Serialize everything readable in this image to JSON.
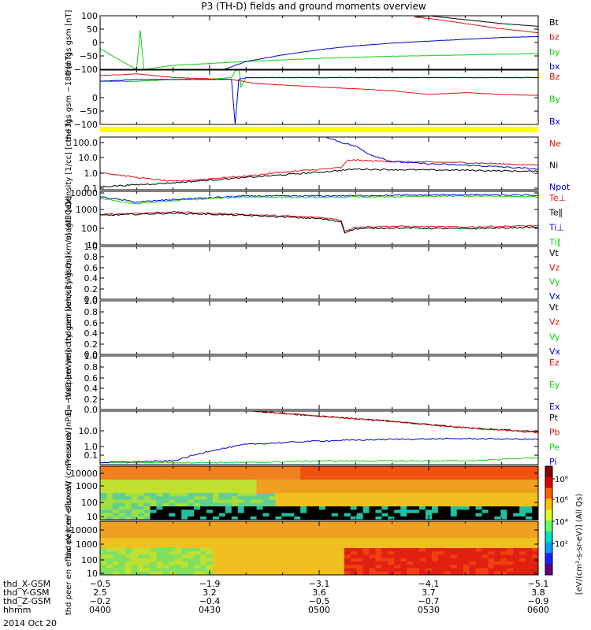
{
  "figure": {
    "title": "P3 (TH-D) fields and ground moments overview",
    "date": "2014 Oct 20"
  },
  "colors": {
    "black": "#000000",
    "red": "#e01010",
    "green": "#10d010",
    "blue": "#0000d0",
    "yellow": "#ffff00"
  },
  "chart_data": [
    {
      "type": "line",
      "id": "fgs",
      "ylabel": "thd fgs gsm [nT]",
      "yticks": [
        "100",
        "50",
        "0",
        "−50",
        "−100"
      ],
      "ylim": [
        -100,
        105
      ],
      "series": [
        {
          "name": "Bt",
          "color": "black",
          "x": [
            43,
            45,
            50,
            55,
            60
          ],
          "y": [
            100,
            105,
            90,
            75,
            65
          ]
        },
        {
          "name": "bz",
          "color": "red",
          "x": [
            43,
            45,
            50,
            55,
            60
          ],
          "y": [
            100,
            95,
            75,
            55,
            40
          ]
        },
        {
          "name": "by",
          "color": "green",
          "x": [
            0,
            3,
            5,
            5.5,
            6,
            10,
            20,
            30,
            40,
            50,
            55,
            60
          ],
          "y": [
            -20,
            -70,
            -100,
            50,
            -100,
            -85,
            -70,
            -58,
            -50,
            -45,
            -42,
            -40
          ]
        },
        {
          "name": "bx",
          "color": "blue",
          "x": [
            17,
            20,
            25,
            30,
            35,
            40,
            45,
            50,
            55,
            60
          ],
          "y": [
            -100,
            -70,
            -45,
            -25,
            -10,
            0,
            8,
            15,
            22,
            25
          ]
        }
      ]
    },
    {
      "type": "line",
      "id": "fgs_dsl",
      "ylabel": "thd fgs gsm −180 [nT]",
      "yticks": [
        "0",
        "−50",
        "−100"
      ],
      "ylim": [
        -120,
        25
      ],
      "series": [
        {
          "name": "Bz",
          "color": "red",
          "x": [
            0,
            5,
            10,
            18,
            21,
            25,
            30,
            40,
            45,
            50,
            55,
            60
          ],
          "y": [
            10,
            15,
            5,
            0,
            -10,
            -15,
            -20,
            -30,
            -40,
            -35,
            -40,
            -42
          ]
        },
        {
          "name": "By",
          "color": "green",
          "x": [
            0,
            5,
            10,
            15,
            18,
            19,
            19.3,
            20,
            30,
            40,
            50,
            60
          ],
          "y": [
            -5,
            -5,
            0,
            0,
            5,
            40,
            -20,
            5,
            5,
            5,
            5,
            5
          ]
        },
        {
          "name": "Bx",
          "color": "blue",
          "x": [
            0,
            5,
            10,
            15,
            18,
            18.5,
            19,
            20,
            30,
            40,
            50,
            60
          ],
          "y": [
            -5,
            0,
            0,
            0,
            0,
            -120,
            0,
            5,
            5,
            5,
            5,
            5
          ]
        }
      ]
    },
    {
      "type": "line",
      "id": "density",
      "ylabel": "Density [1/cc] [cm−3]",
      "yticks": [
        "100.0",
        "10.0",
        "1.0",
        "0.1"
      ],
      "ylim": [
        0.1,
        100
      ],
      "log": true,
      "series": [
        {
          "name": "Ne",
          "color": "red",
          "x": [
            0,
            5,
            10,
            20,
            25,
            33,
            34,
            40,
            50,
            60
          ],
          "y": [
            1,
            0.5,
            0.3,
            0.6,
            1,
            1.8,
            5,
            4,
            3.5,
            2.5
          ]
        },
        {
          "name": "Ni",
          "color": "black",
          "x": [
            0,
            10,
            20,
            30,
            35,
            40,
            50,
            60
          ],
          "y": [
            0.15,
            0.25,
            0.5,
            1,
            1.5,
            1.4,
            1.3,
            1.1
          ]
        },
        {
          "name": "Npot",
          "color": "blue",
          "x": [
            31,
            33,
            35,
            37,
            40,
            45,
            50,
            55,
            60
          ],
          "y": [
            100,
            50,
            30,
            10,
            4,
            3,
            2.5,
            2,
            1.5
          ]
        }
      ]
    },
    {
      "type": "line",
      "id": "temperature",
      "ylabel": "magt3 [eV]",
      "yticks": [
        "10000",
        "1000",
        "100",
        "10"
      ],
      "ylim": [
        10,
        10000
      ],
      "log": true,
      "series": [
        {
          "name": "Te⊥",
          "color": "red",
          "x": [
            0,
            10,
            20,
            30,
            33,
            33.5,
            35,
            40,
            50,
            60
          ],
          "y": [
            500,
            700,
            500,
            350,
            250,
            60,
            100,
            110,
            100,
            120
          ]
        },
        {
          "name": "Te∥",
          "color": "black",
          "x": [
            0,
            10,
            20,
            30,
            33,
            33.5,
            35,
            40,
            50,
            60
          ],
          "y": [
            450,
            600,
            450,
            300,
            200,
            50,
            80,
            90,
            80,
            100
          ]
        },
        {
          "name": "Ti⊥",
          "color": "blue",
          "x": [
            0,
            5,
            10,
            20,
            30,
            40,
            50,
            60
          ],
          "y": [
            5000,
            2500,
            3500,
            5500,
            5500,
            6000,
            6500,
            6000
          ]
        },
        {
          "name": "Ti∥",
          "color": "green",
          "x": [
            0,
            5,
            10,
            20,
            30,
            40,
            50,
            60
          ],
          "y": [
            4000,
            2000,
            3000,
            5000,
            4500,
            5000,
            5500,
            5000
          ]
        }
      ]
    },
    {
      "type": "line",
      "id": "peir_velocity",
      "ylabel": "thd peir velocity gsm [km/s] (All Qs)",
      "yticks": [
        "1.0",
        "0.8",
        "0.6",
        "0.4",
        "0.2",
        "0.0"
      ],
      "ylim": [
        0,
        1
      ],
      "series": [
        {
          "name": "Vt",
          "color": "black"
        },
        {
          "name": "Vz",
          "color": "red"
        },
        {
          "name": "Vy",
          "color": "green"
        },
        {
          "name": "Vx",
          "color": "blue"
        }
      ]
    },
    {
      "type": "line",
      "id": "peer_velocity",
      "ylabel": "thd peer velocity gsm [km/s] (All Qs)",
      "yticks": [
        "1.0",
        "0.8",
        "0.6",
        "0.4",
        "0.2",
        "0.0"
      ],
      "ylim": [
        0,
        1
      ],
      "series": [
        {
          "name": "Vt",
          "color": "black"
        },
        {
          "name": "Vz",
          "color": "red"
        },
        {
          "name": "Vy",
          "color": "green"
        },
        {
          "name": "Vx",
          "color": "blue"
        }
      ]
    },
    {
      "type": "line",
      "id": "efield",
      "ylabel": "E=−VxB [mV/m]",
      "yticks": [
        "1.0",
        "0.8",
        "0.6",
        "0.4",
        "0.2",
        "0.0"
      ],
      "ylim": [
        0,
        1
      ],
      "series": [
        {
          "name": "Ez",
          "color": "red"
        },
        {
          "name": "Ey",
          "color": "green"
        },
        {
          "name": "Ex",
          "color": "blue"
        }
      ]
    },
    {
      "type": "line",
      "id": "pressure",
      "ylabel": "Pressure [nPa]",
      "yticks": [
        "10.0",
        "1.0",
        "0.1"
      ],
      "ylim": [
        0.03,
        50
      ],
      "log": true,
      "series": [
        {
          "name": "Pt",
          "color": "black",
          "x": [
            21,
            30,
            40,
            50,
            60
          ],
          "y": [
            50,
            25,
            12,
            5,
            2.8
          ]
        },
        {
          "name": "Pb",
          "color": "red",
          "x": [
            21,
            30,
            40,
            50,
            60
          ],
          "y": [
            50,
            25,
            12,
            5,
            2.5
          ]
        },
        {
          "name": "Pe",
          "color": "green",
          "x": [
            0,
            10,
            20,
            30,
            40,
            50,
            60
          ],
          "y": [
            0.04,
            0.04,
            0.04,
            0.05,
            0.05,
            0.05,
            0.08
          ]
        },
        {
          "name": "Pi",
          "color": "blue",
          "x": [
            0,
            10,
            15,
            20,
            30,
            40,
            50,
            60
          ],
          "y": [
            0.04,
            0.05,
            0.2,
            0.5,
            0.8,
            1.0,
            1.1,
            1.0
          ]
        }
      ]
    },
    {
      "type": "heatmap",
      "id": "peir_spectrogram",
      "ylabel": "thd peir en eflux eV (cm²-s-sr-eV)",
      "yticks": [
        "10000",
        "1000",
        "100",
        "10"
      ],
      "ylim": [
        5,
        25000
      ],
      "log": true
    },
    {
      "type": "heatmap",
      "id": "peer_spectrogram",
      "ylabel": "thd peer en eflux eV (cm²-s-sr-eV)",
      "yticks": [
        "10000",
        "1000",
        "100",
        "10"
      ],
      "ylim": [
        5,
        25000
      ],
      "log": true
    }
  ],
  "colorbar": {
    "label": "[eV/(cm²-s-sr-eV)] (All Qs)",
    "ticks": [
      "10⁸",
      "10⁶",
      "10⁴",
      "10²"
    ]
  },
  "time_axis": {
    "labels": [
      "thd_X-GSM",
      "thd_Y-GSM",
      "thd_Z-GSM",
      "hhmm"
    ],
    "ticks": [
      {
        "t": 0,
        "vals": [
          "−0.5",
          "2.5",
          "−0.2",
          "0400"
        ]
      },
      {
        "t": 15,
        "vals": [
          "−1.9",
          "3.2",
          "−0.4",
          "0430"
        ]
      },
      {
        "t": 30,
        "vals": [
          "−3.1",
          "3.6",
          "−0.5",
          "0500"
        ]
      },
      {
        "t": 45,
        "vals": [
          "−4.1",
          "3.7",
          "−0.7",
          "0530"
        ]
      },
      {
        "t": 60,
        "vals": [
          "−5.1",
          "3.8",
          "−0.9",
          "0600"
        ]
      }
    ]
  }
}
